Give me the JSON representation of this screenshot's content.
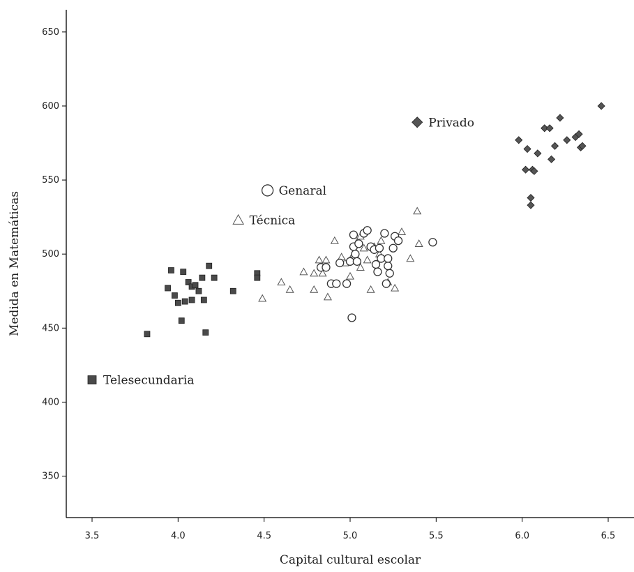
{
  "chart_data": {
    "type": "scatter",
    "title": "",
    "xlabel": "Capital cultural escolar",
    "ylabel": "Medida en Matemáticas",
    "xlim": [
      3.35,
      6.65
    ],
    "ylim": [
      322,
      665
    ],
    "xticks": [
      3.5,
      4.0,
      4.5,
      5.0,
      5.5,
      6.0,
      6.5
    ],
    "xtick_labels": [
      "3.5",
      "4.0",
      "4.5",
      "5.0",
      "5.5",
      "6.0",
      "6.5"
    ],
    "yticks": [
      350,
      400,
      450,
      500,
      550,
      600,
      650
    ],
    "ytick_labels": [
      "350",
      "400",
      "450",
      "500",
      "550",
      "600",
      "650"
    ],
    "grid": false,
    "legend": "inline labels",
    "series": [
      {
        "name": "Telesecundaria",
        "marker": "square",
        "color": "#4a4a4a",
        "label_pos": [
          3.5,
          415
        ],
        "points": [
          [
            3.82,
            446
          ],
          [
            3.94,
            477
          ],
          [
            3.96,
            489
          ],
          [
            3.98,
            472
          ],
          [
            4.0,
            467
          ],
          [
            4.02,
            455
          ],
          [
            4.03,
            488
          ],
          [
            4.04,
            468
          ],
          [
            4.06,
            481
          ],
          [
            4.08,
            469
          ],
          [
            4.08,
            478
          ],
          [
            4.12,
            475
          ],
          [
            4.14,
            484
          ],
          [
            4.15,
            469
          ],
          [
            4.16,
            447
          ],
          [
            4.18,
            492
          ],
          [
            4.21,
            484
          ],
          [
            4.32,
            475
          ],
          [
            4.46,
            487
          ],
          [
            4.46,
            484
          ],
          [
            4.1,
            479
          ]
        ]
      },
      {
        "name": "Técnica",
        "marker": "triangle",
        "color": "#555555",
        "label_pos": [
          4.35,
          523
        ],
        "points": [
          [
            4.49,
            470
          ],
          [
            4.6,
            481
          ],
          [
            4.65,
            476
          ],
          [
            4.73,
            488
          ],
          [
            4.79,
            476
          ],
          [
            4.79,
            487
          ],
          [
            4.82,
            496
          ],
          [
            4.84,
            487
          ],
          [
            4.86,
            496
          ],
          [
            4.87,
            471
          ],
          [
            4.91,
            509
          ],
          [
            4.95,
            498
          ],
          [
            4.97,
            494
          ],
          [
            5.0,
            485
          ],
          [
            5.02,
            500
          ],
          [
            5.04,
            508
          ],
          [
            5.06,
            512
          ],
          [
            5.08,
            504
          ],
          [
            5.1,
            496
          ],
          [
            5.12,
            476
          ],
          [
            5.14,
            505
          ],
          [
            5.17,
            500
          ],
          [
            5.22,
            481
          ],
          [
            5.26,
            477
          ],
          [
            5.3,
            515
          ],
          [
            5.35,
            497
          ],
          [
            5.39,
            529
          ],
          [
            5.4,
            507
          ],
          [
            5.18,
            509
          ],
          [
            5.06,
            491
          ]
        ]
      },
      {
        "name": "Genaral",
        "marker": "circle",
        "color": "#333333",
        "label_pos": [
          4.52,
          543
        ],
        "points": [
          [
            4.83,
            491
          ],
          [
            4.86,
            491
          ],
          [
            4.89,
            480
          ],
          [
            4.92,
            480
          ],
          [
            4.94,
            494
          ],
          [
            4.98,
            480
          ],
          [
            5.0,
            495
          ],
          [
            5.01,
            457
          ],
          [
            5.02,
            513
          ],
          [
            5.02,
            505
          ],
          [
            5.03,
            500
          ],
          [
            5.04,
            495
          ],
          [
            5.05,
            507
          ],
          [
            5.08,
            514
          ],
          [
            5.1,
            516
          ],
          [
            5.12,
            505
          ],
          [
            5.14,
            503
          ],
          [
            5.15,
            493
          ],
          [
            5.16,
            488
          ],
          [
            5.17,
            504
          ],
          [
            5.18,
            497
          ],
          [
            5.2,
            514
          ],
          [
            5.21,
            480
          ],
          [
            5.22,
            492
          ],
          [
            5.22,
            497
          ],
          [
            5.23,
            487
          ],
          [
            5.25,
            504
          ],
          [
            5.26,
            512
          ],
          [
            5.28,
            509
          ],
          [
            5.48,
            508
          ]
        ]
      },
      {
        "name": "Privado",
        "marker": "diamond",
        "color": "#555555",
        "label_pos": [
          5.39,
          589
        ],
        "points": [
          [
            5.98,
            577
          ],
          [
            6.02,
            557
          ],
          [
            6.03,
            571
          ],
          [
            6.05,
            538
          ],
          [
            6.05,
            533
          ],
          [
            6.06,
            557
          ],
          [
            6.07,
            556
          ],
          [
            6.09,
            568
          ],
          [
            6.13,
            585
          ],
          [
            6.16,
            585
          ],
          [
            6.17,
            564
          ],
          [
            6.19,
            573
          ],
          [
            6.22,
            592
          ],
          [
            6.26,
            577
          ],
          [
            6.31,
            579
          ],
          [
            6.33,
            581
          ],
          [
            6.34,
            572
          ],
          [
            6.35,
            573
          ],
          [
            6.46,
            600
          ]
        ]
      }
    ]
  }
}
